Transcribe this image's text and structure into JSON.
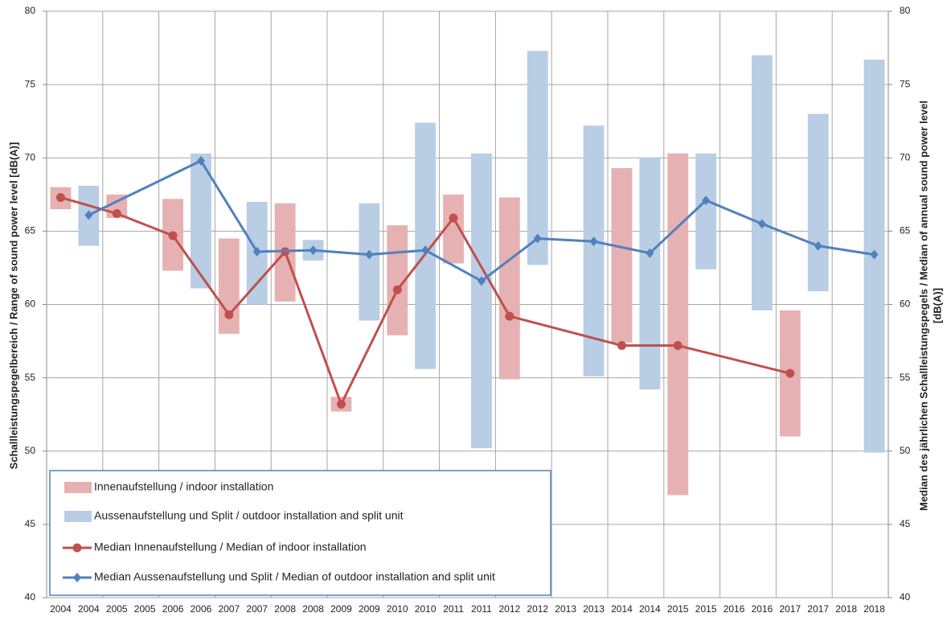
{
  "chart_data": {
    "type": "combo",
    "y_title": "Schallleistungspegelbereich / Range of sound power level [dB(A)]",
    "y2_title": [
      "Median des jährlichen Schallleistungspegels / Median of annual sound power level",
      "[dB(A)]"
    ],
    "categories": [
      "2004",
      "2004",
      "2005",
      "2005",
      "2006",
      "2006",
      "2007",
      "2007",
      "2008",
      "2008",
      "2009",
      "2009",
      "2010",
      "2010",
      "2011",
      "2011",
      "2012",
      "2012",
      "2013",
      "2013",
      "2014",
      "2014",
      "2015",
      "2015",
      "2016",
      "2016",
      "2017",
      "2017",
      "2018",
      "2018"
    ],
    "ylim": [
      40,
      80
    ],
    "yticks": [
      40,
      45,
      50,
      55,
      60,
      65,
      70,
      75,
      80
    ],
    "y2lim": [
      40,
      80
    ],
    "y2ticks": [
      40,
      45,
      50,
      55,
      60,
      65,
      70,
      75,
      80
    ],
    "grid": true,
    "legend": "bottom-left",
    "span_gaps": true,
    "series": [
      {
        "name": "Innenaufstellung / indoor installation",
        "type": "range",
        "color": "#e6b1b2",
        "low": [
          66.5,
          null,
          65.9,
          null,
          62.3,
          null,
          58.0,
          null,
          60.2,
          null,
          52.7,
          null,
          57.9,
          null,
          62.8,
          null,
          54.9,
          null,
          null,
          null,
          57.4,
          null,
          47.0,
          null,
          null,
          null,
          51.0,
          null,
          null,
          null
        ],
        "high": [
          68.0,
          null,
          67.5,
          null,
          67.2,
          null,
          64.5,
          null,
          66.9,
          null,
          53.7,
          null,
          65.4,
          null,
          67.5,
          null,
          67.3,
          null,
          null,
          null,
          69.3,
          null,
          70.3,
          null,
          null,
          null,
          59.6,
          null,
          null,
          null
        ]
      },
      {
        "name": "Aussenaufstellung und Split / outdoor installation and split unit",
        "type": "range",
        "color": "#b9cde5",
        "low": [
          null,
          64.0,
          null,
          null,
          null,
          61.1,
          null,
          60.0,
          null,
          63.0,
          null,
          58.9,
          null,
          55.6,
          null,
          50.2,
          null,
          62.7,
          null,
          55.1,
          null,
          54.2,
          null,
          62.4,
          null,
          59.6,
          null,
          60.9,
          null,
          49.9
        ],
        "high": [
          null,
          68.1,
          null,
          null,
          null,
          70.3,
          null,
          67.0,
          null,
          64.4,
          null,
          66.9,
          null,
          72.4,
          null,
          70.3,
          null,
          77.3,
          null,
          72.2,
          null,
          70.0,
          null,
          70.3,
          null,
          77.0,
          null,
          73.0,
          null,
          76.7
        ]
      },
      {
        "name": "Median Innenaufstellung / Median of indoor installation",
        "type": "line",
        "marker": "circle",
        "color": "#c0504d",
        "axis": "y2",
        "values": [
          67.3,
          null,
          66.2,
          null,
          64.7,
          null,
          59.3,
          null,
          63.6,
          null,
          53.2,
          null,
          61.0,
          null,
          65.9,
          null,
          59.2,
          null,
          null,
          null,
          57.2,
          null,
          57.2,
          null,
          null,
          null,
          55.3,
          null,
          null,
          null
        ]
      },
      {
        "name": "Median Aussenaufstellung und Split / Median of outdoor installation and split unit",
        "type": "line",
        "marker": "diamond",
        "color": "#4f81bd",
        "axis": "y2",
        "values": [
          null,
          66.1,
          null,
          null,
          null,
          69.8,
          null,
          63.6,
          null,
          63.7,
          null,
          63.4,
          null,
          63.7,
          null,
          61.6,
          null,
          64.5,
          null,
          64.3,
          null,
          63.5,
          null,
          67.1,
          null,
          65.5,
          null,
          64.0,
          null,
          63.4
        ]
      }
    ]
  }
}
